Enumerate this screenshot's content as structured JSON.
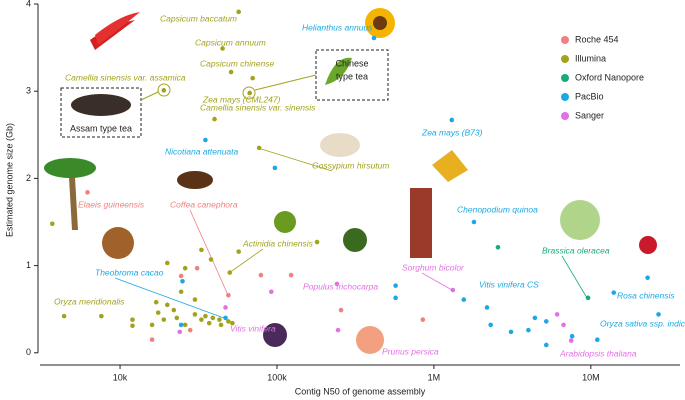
{
  "chart_data": {
    "type": "scatter",
    "xlabel": "Contig N50 of genome assembly",
    "ylabel": "Estimated genome size (Gb)",
    "xscale": "log",
    "xlim": [
      3000,
      37000000
    ],
    "xticks": [
      {
        "value": 10000,
        "label": "10k"
      },
      {
        "value": 100000,
        "label": "100k"
      },
      {
        "value": 1000000,
        "label": "1M"
      },
      {
        "value": 10000000,
        "label": "10M"
      }
    ],
    "ylim": [
      -0.14,
      4
    ],
    "yticks": [
      0,
      1,
      2,
      3,
      4
    ],
    "legend": "upper right",
    "series": [
      {
        "name": "Roche 454",
        "color": "#f07f7f",
        "x": [
          6200,
          49000,
          24500,
          31000,
          79000,
          123000,
          16000,
          28000,
          256000,
          850000
        ],
        "values": [
          1.84,
          0.66,
          0.88,
          0.97,
          0.89,
          0.89,
          0.15,
          0.26,
          0.49,
          0.38
        ]
      },
      {
        "name": "Illumina",
        "color": "#a3a21c",
        "x": [
          57000,
          45000,
          51000,
          70000,
          19000,
          67000,
          40000,
          77000,
          3700,
          50000,
          180000,
          4400,
          7600,
          12000,
          12000,
          17000,
          17500,
          19000,
          20000,
          22000,
          23000,
          24500,
          26000,
          30000,
          30000,
          33000,
          35000,
          37000,
          39000,
          43000,
          44000,
          49000,
          52000,
          20000,
          26000,
          33000,
          38000,
          57000,
          16000
        ],
        "values": [
          3.91,
          3.49,
          3.22,
          3.15,
          3.01,
          2.98,
          2.68,
          2.35,
          1.48,
          0.92,
          1.27,
          0.42,
          0.42,
          0.38,
          0.31,
          0.58,
          0.46,
          0.38,
          0.55,
          0.49,
          0.4,
          0.7,
          0.32,
          0.61,
          0.44,
          0.38,
          0.42,
          0.34,
          0.4,
          0.38,
          0.32,
          0.36,
          0.34,
          1.03,
          0.97,
          1.18,
          1.07,
          1.16,
          0.32
        ]
      },
      {
        "name": "Oxford Nanopore",
        "color": "#1aa97f",
        "x": [
          9600000,
          2560000
        ],
        "values": [
          0.63,
          1.21
        ]
      },
      {
        "name": "PacBio",
        "color": "#1ba8e4",
        "x": [
          415000,
          1300000,
          35000,
          47000,
          1800000,
          2180000,
          23000000,
          11000000,
          97000,
          25000,
          24500,
          570000,
          570000,
          1550000,
          2300000,
          3100000,
          4000000,
          5200000,
          4400000,
          5200000,
          7600000,
          14000000,
          27000000
        ],
        "values": [
          3.61,
          2.67,
          2.44,
          0.4,
          1.5,
          0.52,
          0.86,
          0.15,
          2.12,
          0.82,
          0.32,
          0.77,
          0.63,
          0.61,
          0.32,
          0.24,
          0.26,
          0.09,
          0.4,
          0.36,
          0.19,
          0.69,
          0.44
        ]
      },
      {
        "name": "Sanger",
        "color": "#e46fe6",
        "x": [
          47000,
          241000,
          245000,
          1320000,
          7500000,
          24000,
          92000,
          6100000,
          6700000
        ],
        "values": [
          0.52,
          0.79,
          0.26,
          0.72,
          0.14,
          0.24,
          0.7,
          0.44,
          0.32
        ]
      }
    ],
    "annotations": [
      {
        "text": "Capsicum baccatum",
        "color": "#a3a21c"
      },
      {
        "text": "Capsicum annuum",
        "color": "#a3a21c"
      },
      {
        "text": "Capsicum chinense",
        "color": "#a3a21c"
      },
      {
        "text": "Camellia sinensis var. assamica",
        "color": "#a3a21c"
      },
      {
        "text": "Camellia sinensis var. sinensis",
        "color": "#a3a21c"
      },
      {
        "text": "Zea mays (CML247)",
        "color": "#a3a21c"
      },
      {
        "text": "Gossypium hirsutum",
        "color": "#a3a21c"
      },
      {
        "text": "Actinidia chinensis",
        "color": "#a3a21c"
      },
      {
        "text": "Oryza meridionalis",
        "color": "#a3a21c"
      },
      {
        "text": "Elaeis guineensis",
        "color": "#f07f7f"
      },
      {
        "text": "Coffea canephora",
        "color": "#f07f7f"
      },
      {
        "text": "Helianthus annuus",
        "color": "#1ba8e4"
      },
      {
        "text": "Zea mays (B73)",
        "color": "#1ba8e4"
      },
      {
        "text": "Nicotiana attenuata",
        "color": "#1ba8e4"
      },
      {
        "text": "Theobroma cacao",
        "color": "#1ba8e4"
      },
      {
        "text": "Chenopodium quinoa",
        "color": "#1ba8e4"
      },
      {
        "text": "Vitis vinifera CS",
        "color": "#1ba8e4"
      },
      {
        "text": "Rosa chinensis",
        "color": "#1ba8e4"
      },
      {
        "text": "Oryza sativa ssp. indica",
        "color": "#1ba8e4"
      },
      {
        "text": "Vitis vinifera",
        "color": "#e46fe6"
      },
      {
        "text": "Populus trichocarpa",
        "color": "#e46fe6"
      },
      {
        "text": "Prunus persica",
        "color": "#e46fe6"
      },
      {
        "text": "Sorghum bicolor",
        "color": "#e46fe6"
      },
      {
        "text": "Arabidopsis thaliana",
        "color": "#e46fe6"
      },
      {
        "text": "Brassica oleracea",
        "color": "#1aa97f"
      }
    ],
    "image_labels": [
      "Assam type tea",
      "Chinese",
      "type tea"
    ]
  }
}
